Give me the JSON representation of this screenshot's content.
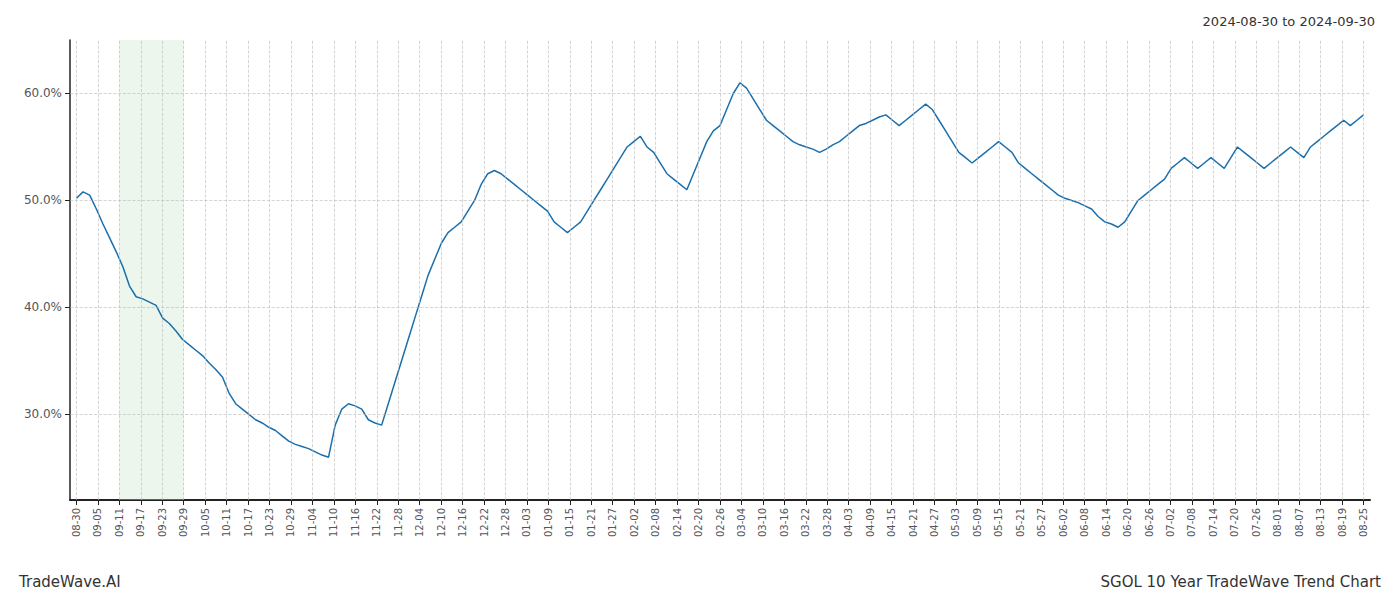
{
  "chart_data": {
    "type": "line",
    "title": "SGOL 10 Year TradeWave Trend Chart",
    "subtitle": "2024-08-30 to 2024-09-30",
    "annotations": [
      "TradeWave.AI"
    ],
    "color": "#1a6fad",
    "background_color": "#ffffff",
    "grid": true,
    "shaded_region": {
      "x": [
        2,
        5
      ],
      "color": "#c8e6c9"
    },
    "xlim": [
      -0.3,
      60.3
    ],
    "xticks": [
      {
        "value": 0,
        "label": "08-30"
      },
      {
        "value": 1,
        "label": "09-05"
      },
      {
        "value": 2,
        "label": "09-11"
      },
      {
        "value": 3,
        "label": "09-17"
      },
      {
        "value": 4,
        "label": "09-23"
      },
      {
        "value": 5,
        "label": "09-29"
      },
      {
        "value": 6,
        "label": "10-05"
      },
      {
        "value": 7,
        "label": "10-11"
      },
      {
        "value": 8,
        "label": "10-17"
      },
      {
        "value": 9,
        "label": "10-23"
      },
      {
        "value": 10,
        "label": "10-29"
      },
      {
        "value": 11,
        "label": "11-04"
      },
      {
        "value": 12,
        "label": "11-10"
      },
      {
        "value": 13,
        "label": "11-16"
      },
      {
        "value": 14,
        "label": "11-22"
      },
      {
        "value": 15,
        "label": "11-28"
      },
      {
        "value": 16,
        "label": "12-04"
      },
      {
        "value": 17,
        "label": "12-10"
      },
      {
        "value": 18,
        "label": "12-16"
      },
      {
        "value": 19,
        "label": "12-22"
      },
      {
        "value": 20,
        "label": "12-28"
      },
      {
        "value": 21,
        "label": "01-03"
      },
      {
        "value": 22,
        "label": "01-09"
      },
      {
        "value": 23,
        "label": "01-15"
      },
      {
        "value": 24,
        "label": "01-21"
      },
      {
        "value": 25,
        "label": "01-27"
      },
      {
        "value": 26,
        "label": "02-02"
      },
      {
        "value": 27,
        "label": "02-08"
      },
      {
        "value": 28,
        "label": "02-14"
      },
      {
        "value": 29,
        "label": "02-20"
      },
      {
        "value": 30,
        "label": "02-26"
      },
      {
        "value": 31,
        "label": "03-04"
      },
      {
        "value": 32,
        "label": "03-10"
      },
      {
        "value": 33,
        "label": "03-16"
      },
      {
        "value": 34,
        "label": "03-22"
      },
      {
        "value": 35,
        "label": "03-28"
      },
      {
        "value": 36,
        "label": "04-03"
      },
      {
        "value": 37,
        "label": "04-09"
      },
      {
        "value": 38,
        "label": "04-15"
      },
      {
        "value": 39,
        "label": "04-21"
      },
      {
        "value": 40,
        "label": "04-27"
      },
      {
        "value": 41,
        "label": "05-03"
      },
      {
        "value": 42,
        "label": "05-09"
      },
      {
        "value": 43,
        "label": "05-15"
      },
      {
        "value": 44,
        "label": "05-21"
      },
      {
        "value": 45,
        "label": "05-27"
      },
      {
        "value": 46,
        "label": "06-02"
      },
      {
        "value": 47,
        "label": "06-08"
      },
      {
        "value": 48,
        "label": "06-14"
      },
      {
        "value": 49,
        "label": "06-20"
      },
      {
        "value": 50,
        "label": "06-26"
      },
      {
        "value": 51,
        "label": "07-02"
      },
      {
        "value": 52,
        "label": "07-08"
      },
      {
        "value": 53,
        "label": "07-14"
      },
      {
        "value": 54,
        "label": "07-20"
      },
      {
        "value": 55,
        "label": "07-26"
      },
      {
        "value": 56,
        "label": "08-01"
      },
      {
        "value": 57,
        "label": "08-07"
      },
      {
        "value": 58,
        "label": "08-13"
      },
      {
        "value": 59,
        "label": "08-19"
      },
      {
        "value": 60,
        "label": "08-25"
      }
    ],
    "ylim": [
      22,
      65
    ],
    "yticks": [
      {
        "value": 30.0,
        "label": "30.0%"
      },
      {
        "value": 40.0,
        "label": "40.0%"
      },
      {
        "value": 50.0,
        "label": "50.0%"
      },
      {
        "value": 60.0,
        "label": "60.0%"
      }
    ],
    "x": [
      0,
      0.3093,
      0.6186,
      0.9278,
      1.2371,
      1.5464,
      1.8557,
      2.1649,
      2.4742,
      2.7835,
      3.0928,
      3.4021,
      3.7113,
      4.0206,
      4.3299,
      4.6392,
      4.9485,
      5.2577,
      5.567,
      5.8763,
      6.1856,
      6.4948,
      6.8041,
      7.1134,
      7.4227,
      7.732,
      8.0412,
      8.3505,
      8.6598,
      8.9691,
      9.2784,
      9.5876,
      9.8969,
      10.2062,
      10.5155,
      10.8247,
      11.134,
      11.4433,
      11.7526,
      12.0619,
      12.3711,
      12.6804,
      12.9897,
      13.299,
      13.6082,
      13.9175,
      14.2268,
      14.5361,
      14.8454,
      15.1546,
      15.4639,
      15.7732,
      16.0825,
      16.3918,
      16.701,
      17.0103,
      17.3196,
      17.6289,
      17.9381,
      18.2474,
      18.5567,
      18.866,
      19.1753,
      19.4845,
      19.7938,
      20.1031,
      20.4124,
      20.7216,
      21.0309,
      21.3402,
      21.6495,
      21.9588,
      22.268,
      22.5773,
      22.8866,
      23.1959,
      23.5052,
      23.8144,
      24.1237,
      24.433,
      24.7423,
      25.0515,
      25.3608,
      25.6701,
      25.9794,
      26.2887,
      26.5979,
      26.9072,
      27.2165,
      27.5258,
      27.8351,
      28.1443,
      28.4536,
      28.7629,
      29.0722,
      29.3814,
      29.6907,
      30,
      30.3093,
      30.6186,
      30.9278,
      31.2371,
      31.5464,
      31.8557,
      32.1649,
      32.4742,
      32.7835,
      33.0928,
      33.4021,
      33.7113,
      34.0206,
      34.3299,
      34.6392,
      34.9485,
      35.2577,
      35.567,
      35.8763,
      36.1856,
      36.4948,
      36.8041,
      37.1134,
      37.4227,
      37.732,
      38.0412,
      38.3505,
      38.6598,
      38.9691,
      39.2784,
      39.5876,
      39.8969,
      40.2062,
      40.5155,
      40.8247,
      41.134,
      41.4433,
      41.7526,
      42.0619,
      42.3711,
      42.6804,
      42.9897,
      43.299,
      43.6082,
      43.9175,
      44.2268,
      44.5361,
      44.8454,
      45.1546,
      45.4639,
      45.7732,
      46.0825,
      46.3918,
      46.701,
      47.0103,
      47.3196,
      47.6289,
      47.9381,
      48.2474,
      48.5567,
      48.866,
      49.1753,
      49.4845,
      49.7938,
      50.1031,
      50.4124,
      50.7216,
      51.0309,
      51.3402,
      51.6495,
      51.9588,
      52.268,
      52.5773,
      52.8866,
      53.1959,
      53.5052,
      53.8144,
      54.1237,
      54.433,
      54.7423,
      55.0515,
      55.3608,
      55.6701,
      55.9794,
      56.2887,
      56.5979,
      56.9072,
      57.2165,
      57.5258,
      57.8351,
      58.1443,
      58.4536,
      58.7629,
      59.0722,
      59.3814,
      59.6907,
      60
    ],
    "values": [
      50.2,
      50.8,
      50.5,
      49.2,
      47.8,
      46.5,
      45.2,
      43.8,
      42.0,
      41.0,
      40.8,
      40.5,
      40.2,
      39.0,
      38.5,
      37.8,
      37.0,
      36.5,
      36.0,
      35.5,
      34.8,
      34.2,
      33.5,
      32.0,
      31.0,
      30.5,
      30.0,
      29.5,
      29.2,
      28.8,
      28.5,
      28.0,
      27.5,
      27.2,
      27.0,
      26.8,
      26.5,
      26.2,
      26.0,
      29.0,
      30.5,
      31.0,
      30.8,
      30.5,
      29.5,
      29.2,
      29.0,
      31.0,
      33.0,
      35.0,
      37.0,
      39.0,
      41.0,
      43.0,
      44.5,
      46.0,
      47.0,
      47.5,
      48.0,
      49.0,
      50.0,
      51.5,
      52.5,
      52.8,
      52.5,
      52.0,
      51.5,
      51.0,
      50.5,
      50.0,
      49.5,
      49.0,
      48.0,
      47.5,
      47.0,
      47.5,
      48.0,
      49.0,
      50.0,
      51.0,
      52.0,
      53.0,
      54.0,
      55.0,
      55.5,
      56.0,
      55.0,
      54.5,
      53.5,
      52.5,
      52.0,
      51.5,
      51.0,
      52.5,
      54.0,
      55.5,
      56.5,
      57.0,
      58.5,
      60.0,
      61.0,
      60.5,
      59.5,
      58.5,
      57.5,
      57.0,
      56.5,
      56.0,
      55.5,
      55.2,
      55.0,
      54.8,
      54.5,
      54.8,
      55.2,
      55.5,
      56.0,
      56.5,
      57.0,
      57.2,
      57.5,
      57.8,
      58.0,
      57.5,
      57.0,
      57.5,
      58.0,
      58.5,
      59.0,
      58.5,
      57.5,
      56.5,
      55.5,
      54.5,
      54.0,
      53.5,
      54.0,
      54.5,
      55.0,
      55.5,
      55.0,
      54.5,
      53.5,
      53.0,
      52.5,
      52.0,
      51.5,
      51.0,
      50.5,
      50.2,
      50.0,
      49.8,
      49.5,
      49.2,
      48.5,
      48.0,
      47.8,
      47.5,
      48.0,
      49.0,
      50.0,
      50.5,
      51.0,
      51.5,
      52.0,
      53.0,
      53.5,
      54.0,
      53.5,
      53.0,
      53.5,
      54.0,
      53.5,
      53.0,
      54.0,
      55.0,
      54.5,
      54.0,
      53.5,
      53.0,
      53.5,
      54.0,
      54.5,
      55.0,
      54.5,
      54.0,
      55.0,
      55.5,
      56.0,
      56.5,
      57.0,
      57.5,
      57.0,
      57.5,
      58.0
    ]
  }
}
